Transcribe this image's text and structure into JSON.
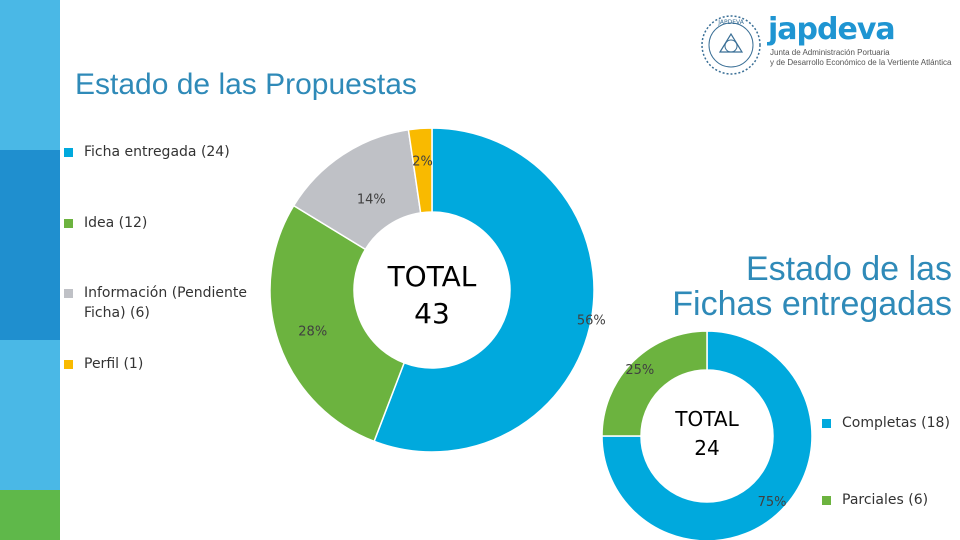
{
  "colors": {
    "blue": "#00A9DD",
    "green": "#6CB33F",
    "gray": "#BFC1C6",
    "yellow": "#F9BA00",
    "title": "#2f8ab8",
    "stripe_light": "#4ab8e6",
    "stripe_dark": "#1f8fcf",
    "stripe_green": "#5fb84a"
  },
  "logo": {
    "name": "japdeva",
    "subtitle_line1": "Junta de Administración Portuaria",
    "subtitle_line2": "y de Desarrollo Económico de la Vertiente Atlántica",
    "seal_text": "JAPDEVA"
  },
  "chart_data": [
    {
      "type": "donut",
      "title": "Estado de las Propuestas",
      "categories": [
        "Ficha entregada (24)",
        "Idea (12)",
        "Información (Pendiente Ficha) (6)",
        "Perfil (1)"
      ],
      "values": [
        24,
        12,
        6,
        1
      ],
      "percent_labels": [
        "56%",
        "28%",
        "14%",
        "2%"
      ],
      "center_label": [
        "TOTAL",
        "43"
      ],
      "legend_position": "left"
    },
    {
      "type": "donut",
      "title": "Estado de las Fichas entregadas",
      "categories": [
        "Completas (18)",
        "Parciales (6)"
      ],
      "values": [
        18,
        6
      ],
      "percent_labels": [
        "75%",
        "25%"
      ],
      "center_label": [
        "TOTAL",
        "24"
      ],
      "legend_position": "right"
    }
  ]
}
